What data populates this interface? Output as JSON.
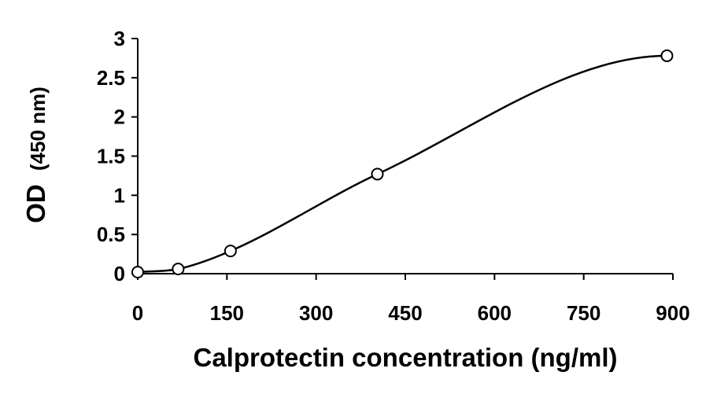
{
  "chart_data": {
    "type": "scatter",
    "title": "",
    "xlabel": "Calprotectin concentration (ng/ml)",
    "ylabel_main": "OD",
    "ylabel_unit": "(450 nm)",
    "xlim": [
      0,
      900
    ],
    "ylim": [
      0,
      3
    ],
    "xticks": [
      "0",
      "150",
      "300",
      "450",
      "600",
      "750",
      "900"
    ],
    "yticks": [
      "0",
      "0.5",
      "1",
      "1.5",
      "2",
      "2.5",
      "3"
    ],
    "grid": false,
    "legend": "none",
    "points": [
      {
        "x": 0,
        "y": 0.02
      },
      {
        "x": 68,
        "y": 0.06
      },
      {
        "x": 156,
        "y": 0.29
      },
      {
        "x": 403,
        "y": 1.27
      },
      {
        "x": 890,
        "y": 2.78
      }
    ],
    "fit_curve": {
      "type": "smooth fit line"
    },
    "colors": {
      "line": "#000000",
      "marker_fill": "#ffffff",
      "marker_stroke": "#000000"
    }
  }
}
